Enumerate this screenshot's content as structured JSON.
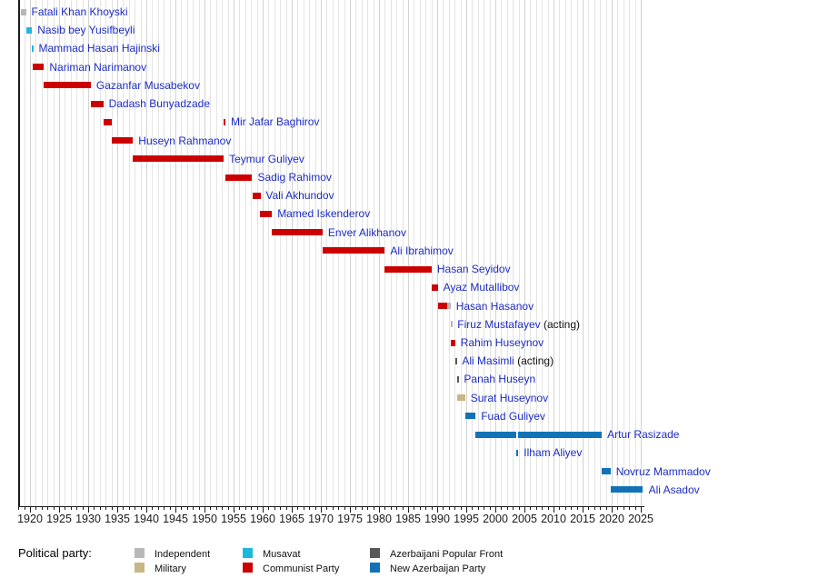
{
  "chart_data": {
    "type": "timeline",
    "title": "",
    "axis": {
      "year_min": 1918,
      "year_max": 2025,
      "tick_label_years": [
        1920,
        1925,
        1930,
        1935,
        1940,
        1945,
        1950,
        1955,
        1960,
        1965,
        1970,
        1975,
        1980,
        1985,
        1990,
        1995,
        2000,
        2005,
        2010,
        2015,
        2020,
        2025
      ],
      "minor_tick_interval": 1,
      "major_tick_interval": 5,
      "grid": "on"
    },
    "colors": {
      "independent": "#b8b8b8",
      "military": "#c8b685",
      "musavat": "#1cb8dc",
      "communist": "#cc0000",
      "popular_front": "#585858",
      "nap": "#1173b6",
      "label_text": "#1d2cc2",
      "suffix_text": "#111111",
      "grid_minor": "#e4e4e4",
      "grid_major": "#d2d2d2"
    },
    "rows": [
      {
        "name": "Fatali Khan Khoyski",
        "segments": [
          {
            "start": 1918.4,
            "end": 1919.3,
            "party": "independent"
          }
        ]
      },
      {
        "name": "Nasib bey Yusifbeyli",
        "segments": [
          {
            "start": 1919.3,
            "end": 1920.35,
            "party": "musavat"
          }
        ]
      },
      {
        "name": "Mammad Hasan Hajinski",
        "segments": [
          {
            "start": 1920.3,
            "end": 1920.55,
            "party": "musavat"
          }
        ]
      },
      {
        "name": "Nariman Narimanov",
        "segments": [
          {
            "start": 1920.45,
            "end": 1922.4,
            "party": "communist"
          }
        ]
      },
      {
        "name": "Gazanfar Musabekov",
        "segments": [
          {
            "start": 1922.4,
            "end": 1930.45,
            "party": "communist"
          }
        ]
      },
      {
        "name": "Dadash Bunyadzade",
        "segments": [
          {
            "start": 1930.45,
            "end": 1932.6,
            "party": "communist"
          }
        ]
      },
      {
        "name": "Mir Jafar Baghirov",
        "segments": [
          {
            "start": 1932.6,
            "end": 1934.0,
            "party": "communist"
          },
          {
            "start": 1953.3,
            "end": 1953.6,
            "party": "communist"
          }
        ]
      },
      {
        "name": "Huseyn Rahmanov",
        "segments": [
          {
            "start": 1934.0,
            "end": 1937.7,
            "party": "communist"
          }
        ]
      },
      {
        "name": "Teymur Guliyev",
        "segments": [
          {
            "start": 1937.7,
            "end": 1953.3,
            "party": "communist"
          }
        ]
      },
      {
        "name": "Sadig Rahimov",
        "segments": [
          {
            "start": 1953.6,
            "end": 1958.2,
            "party": "communist"
          }
        ]
      },
      {
        "name": "Vali Akhundov",
        "segments": [
          {
            "start": 1958.2,
            "end": 1959.6,
            "party": "communist"
          }
        ]
      },
      {
        "name": "Mamed Iskenderov",
        "segments": [
          {
            "start": 1959.6,
            "end": 1961.6,
            "party": "communist"
          }
        ]
      },
      {
        "name": "Enver Alikhanov",
        "segments": [
          {
            "start": 1961.6,
            "end": 1970.3,
            "party": "communist"
          }
        ]
      },
      {
        "name": "Ali Ibrahimov",
        "segments": [
          {
            "start": 1970.3,
            "end": 1981.0,
            "party": "communist"
          }
        ]
      },
      {
        "name": "Hasan Seyidov",
        "segments": [
          {
            "start": 1981.0,
            "end": 1989.05,
            "party": "communist"
          }
        ]
      },
      {
        "name": "Ayaz Mutallibov",
        "segments": [
          {
            "start": 1989.05,
            "end": 1990.1,
            "party": "communist"
          }
        ]
      },
      {
        "name": "Hasan Hasanov",
        "segments": [
          {
            "start": 1990.1,
            "end": 1991.7,
            "party": "communist"
          },
          {
            "start": 1991.7,
            "end": 1992.3,
            "party": "independent"
          }
        ]
      },
      {
        "name": "Firuz Mustafayev",
        "suffix": "(acting)",
        "segments": [
          {
            "start": 1992.3,
            "end": 1992.55,
            "party": "independent"
          }
        ]
      },
      {
        "name": "Rahim Huseynov",
        "segments": [
          {
            "start": 1992.35,
            "end": 1993.1,
            "party": "communist"
          }
        ]
      },
      {
        "name": "Ali Masimli",
        "suffix": "(acting)",
        "segments": [
          {
            "start": 1993.1,
            "end": 1993.35,
            "party": "popular_front"
          }
        ]
      },
      {
        "name": "Panah Huseyn",
        "segments": [
          {
            "start": 1993.4,
            "end": 1993.65,
            "party": "popular_front"
          }
        ]
      },
      {
        "name": "Surat Huseynov",
        "segments": [
          {
            "start": 1993.5,
            "end": 1994.8,
            "party": "military"
          }
        ]
      },
      {
        "name": "Fuad Guliyev",
        "segments": [
          {
            "start": 1994.8,
            "end": 1996.6,
            "party": "nap"
          }
        ]
      },
      {
        "name": "Artur Rasizade",
        "segments": [
          {
            "start": 1996.6,
            "end": 2003.6,
            "party": "nap"
          },
          {
            "start": 2003.95,
            "end": 2018.3,
            "party": "nap"
          }
        ]
      },
      {
        "name": "Ilham Aliyev",
        "segments": [
          {
            "start": 2003.65,
            "end": 2003.95,
            "party": "nap"
          }
        ]
      },
      {
        "name": "Novruz Mammadov",
        "segments": [
          {
            "start": 2018.3,
            "end": 2019.8,
            "party": "nap"
          }
        ]
      },
      {
        "name": "Ali Asadov",
        "segments": [
          {
            "start": 2019.8,
            "end": 2025.4,
            "party": "nap"
          }
        ]
      }
    ],
    "legend": {
      "title": "Political party:",
      "items": [
        {
          "label": "Independent",
          "key": "independent"
        },
        {
          "label": "Military",
          "key": "military"
        },
        {
          "label": "Musavat",
          "key": "musavat"
        },
        {
          "label": "Communist Party",
          "key": "communist"
        },
        {
          "label": "Azerbaijani Popular Front",
          "key": "popular_front"
        },
        {
          "label": "New Azerbaijan Party",
          "key": "nap"
        }
      ]
    }
  }
}
